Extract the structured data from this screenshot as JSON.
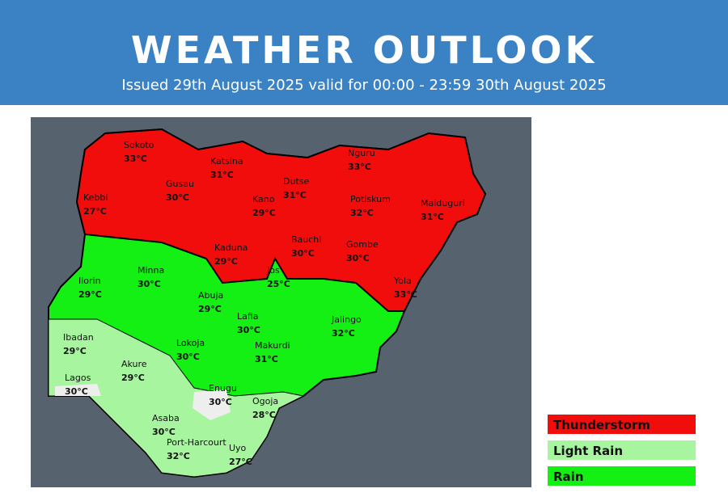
{
  "header": {
    "title": "WEATHER OUTLOOK",
    "subtitle": "Issued 29th August 2025 valid for 00:00 - 23:59 30th August 2025"
  },
  "cities": [
    {
      "name": "Sokoto",
      "temp": "33°C"
    },
    {
      "name": "Katsina",
      "temp": "31°C"
    },
    {
      "name": "Gusau",
      "temp": "30°C"
    },
    {
      "name": "Kebbi",
      "temp": "27°C"
    },
    {
      "name": "Dutse",
      "temp": "31°C"
    },
    {
      "name": "Nguru",
      "temp": "33°C"
    },
    {
      "name": "Kano",
      "temp": "29°C"
    },
    {
      "name": "Potiskum",
      "temp": "32°C"
    },
    {
      "name": "Maiduguri",
      "temp": "31°C"
    },
    {
      "name": "Kaduna",
      "temp": "29°C"
    },
    {
      "name": "Bauchi",
      "temp": "30°C"
    },
    {
      "name": "Gombe",
      "temp": "30°C"
    },
    {
      "name": "Jos",
      "temp": "25°C"
    },
    {
      "name": "Yola",
      "temp": "33°C"
    },
    {
      "name": "Minna",
      "temp": "30°C"
    },
    {
      "name": "Ilorin",
      "temp": "29°C"
    },
    {
      "name": "Abuja",
      "temp": "29°C"
    },
    {
      "name": "Lafia",
      "temp": "30°C"
    },
    {
      "name": "Jalingo",
      "temp": "32°C"
    },
    {
      "name": "Ibadan",
      "temp": "29°C"
    },
    {
      "name": "Lokoja",
      "temp": "30°C"
    },
    {
      "name": "Makurdi",
      "temp": "31°C"
    },
    {
      "name": "Akure",
      "temp": "29°C"
    },
    {
      "name": "Lagos",
      "temp": "30°C"
    },
    {
      "name": "Enugu",
      "temp": "30°C"
    },
    {
      "name": "Ogoja",
      "temp": "28°C"
    },
    {
      "name": "Asaba",
      "temp": "30°C"
    },
    {
      "name": "Port-Harcourt",
      "temp": "32°C"
    },
    {
      "name": "Uyo",
      "temp": "27°C"
    }
  ],
  "legend": [
    {
      "label": "Thunderstorm",
      "color": "#f20d0d"
    },
    {
      "label": "Light Rain",
      "color": "#a8f5a0"
    },
    {
      "label": "Rain",
      "color": "#14f014"
    }
  ]
}
